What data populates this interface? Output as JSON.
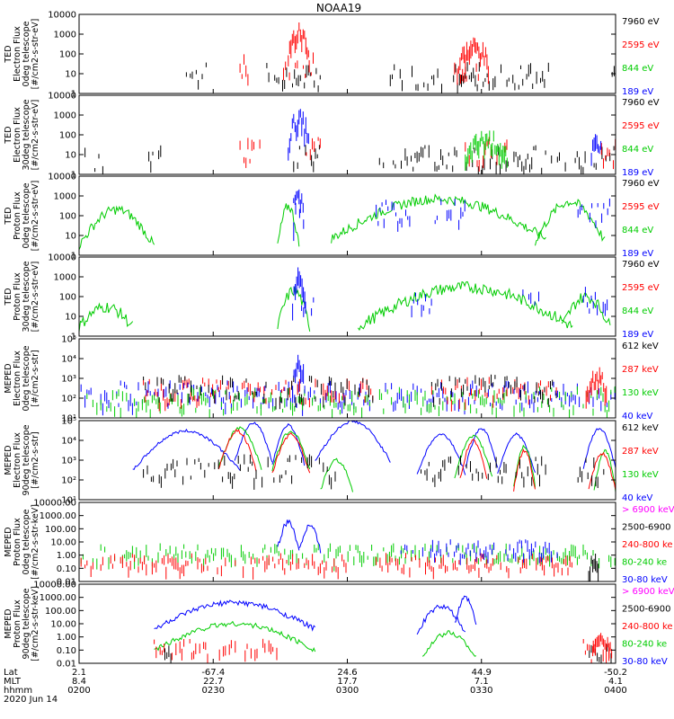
{
  "chart_data": {
    "type": "line",
    "title": "NOAA19",
    "date_label": "2020 Jun 14",
    "footer": {
      "row_labels": [
        "Lat",
        "MLT",
        "hhmm"
      ],
      "columns": [
        {
          "lat": "2.1",
          "mlt": "8.4",
          "hhmm": "0200"
        },
        {
          "lat": "-67.4",
          "mlt": "22.7",
          "hhmm": "0230"
        },
        {
          "lat": "24.6",
          "mlt": "17.7",
          "hhmm": "0300"
        },
        {
          "lat": "44.9",
          "mlt": "7.1",
          "hhmm": "0330"
        },
        {
          "lat": "-50.2",
          "mlt": "4.1",
          "hhmm": "0400"
        }
      ]
    },
    "panels": [
      {
        "ylabel": [
          "TED",
          "Electron Flux",
          "0deg telescope",
          "[#/cm2-s-str-eV]"
        ],
        "y_scale": "log",
        "ylim": [
          1,
          10000
        ],
        "y_ticks": [
          "1",
          "10",
          "100",
          "1000",
          "10000"
        ],
        "legend": [
          {
            "label": "7960 eV",
            "color": "#000000"
          },
          {
            "label": "2595 eV",
            "color": "#ff0000"
          },
          {
            "label": "844 eV",
            "color": "#00cc00"
          },
          {
            "label": "189 eV",
            "color": "#0000ff"
          }
        ],
        "series": [
          {
            "color": "#000000",
            "style": "spikes",
            "level": 10,
            "ranges": [
              [
                0.2,
                0.24
              ],
              [
                0.35,
                0.45
              ],
              [
                0.58,
                0.88
              ],
              [
                0.99,
                1.0
              ]
            ]
          },
          {
            "color": "#ff0000",
            "style": "spikes",
            "level": 30,
            "ranges": [
              [
                0.3,
                0.32
              ],
              [
                0.37,
                0.44
              ],
              [
                0.7,
                0.76
              ],
              [
                0.99,
                1.0
              ]
            ]
          }
        ],
        "bursts": [
          {
            "center": 0.41,
            "width": 0.02,
            "peak": 2000,
            "color": "#ff0000"
          },
          {
            "center": 0.735,
            "width": 0.03,
            "peak": 400,
            "color": "#ff0000"
          }
        ]
      },
      {
        "ylabel": [
          "TED",
          "Electron Flux",
          "30deg telescope",
          "[#/cm2-s-str-eV]"
        ],
        "y_scale": "log",
        "ylim": [
          1,
          10000
        ],
        "y_ticks": [
          "1",
          "10",
          "100",
          "1000",
          "10000"
        ],
        "legend": [
          {
            "label": "7960 eV",
            "color": "#000000"
          },
          {
            "label": "2595 eV",
            "color": "#ff0000"
          },
          {
            "label": "844 eV",
            "color": "#00cc00"
          },
          {
            "label": "189 eV",
            "color": "#0000ff"
          }
        ],
        "series": [
          {
            "color": "#000000",
            "style": "spikes",
            "level": 8,
            "ranges": [
              [
                0.0,
                0.05
              ],
              [
                0.13,
                0.16
              ],
              [
                0.4,
                0.45
              ],
              [
                0.56,
                0.95
              ],
              [
                0.96,
                1.0
              ]
            ]
          },
          {
            "color": "#ff0000",
            "style": "spikes",
            "level": 20,
            "ranges": [
              [
                0.3,
                0.34
              ],
              [
                0.42,
                0.46
              ],
              [
                0.72,
                0.8
              ],
              [
                0.97,
                1.0
              ]
            ]
          }
        ],
        "bursts": [
          {
            "center": 0.41,
            "width": 0.02,
            "peak": 1000,
            "color": "#0000ff"
          },
          {
            "center": 0.76,
            "width": 0.04,
            "peak": 100,
            "color": "#00cc00"
          },
          {
            "center": 0.965,
            "width": 0.01,
            "peak": 100,
            "color": "#0000ff"
          }
        ]
      },
      {
        "ylabel": [
          "TED",
          "Proton Flux",
          "0deg telescope",
          "[#/cm2-s-str-eV]"
        ],
        "y_scale": "log",
        "ylim": [
          1,
          10000
        ],
        "y_ticks": [
          "1",
          "10",
          "100",
          "1000",
          "10000"
        ],
        "legend": [
          {
            "label": "7960 eV",
            "color": "#000000"
          },
          {
            "label": "2595 eV",
            "color": "#ff0000"
          },
          {
            "label": "844 eV",
            "color": "#00cc00"
          },
          {
            "label": "189 eV",
            "color": "#0000ff"
          }
        ],
        "series": [
          {
            "color": "#00cc00",
            "style": "arc",
            "arcs": [
              [
                0.0,
                0.14,
                200
              ],
              [
                0.37,
                0.41,
                300
              ],
              [
                0.47,
                0.87,
                700
              ],
              [
                0.85,
                0.98,
                500
              ]
            ],
            "noise": 0.5
          },
          {
            "color": "#0000ff",
            "style": "spikes",
            "level": 200,
            "ranges": [
              [
                0.4,
                0.44
              ],
              [
                0.55,
                0.62
              ],
              [
                0.66,
                0.72
              ],
              [
                0.93,
                0.99
              ]
            ]
          }
        ],
        "bursts": [
          {
            "center": 0.41,
            "width": 0.01,
            "peak": 2000,
            "color": "#0000ff"
          }
        ]
      },
      {
        "ylabel": [
          "TED",
          "Proton Flux",
          "30deg telescope",
          "[#/cm2-s-str-eV]"
        ],
        "y_scale": "log",
        "ylim": [
          1,
          10000
        ],
        "y_ticks": [
          "1",
          "10",
          "100",
          "1000",
          "10000"
        ],
        "legend": [
          {
            "label": "7960 eV",
            "color": "#000000"
          },
          {
            "label": "2595 eV",
            "color": "#ff0000"
          },
          {
            "label": "844 eV",
            "color": "#00cc00"
          },
          {
            "label": "189 eV",
            "color": "#0000ff"
          }
        ],
        "series": [
          {
            "color": "#00cc00",
            "style": "arc",
            "arcs": [
              [
                0.0,
                0.1,
                30
              ],
              [
                0.37,
                0.43,
                200
              ],
              [
                0.52,
                0.92,
                300
              ],
              [
                0.9,
                0.99,
                100
              ]
            ],
            "noise": 0.6
          },
          {
            "color": "#0000ff",
            "style": "spikes",
            "level": 100,
            "ranges": [
              [
                0.4,
                0.44
              ],
              [
                0.62,
                0.66
              ],
              [
                0.82,
                0.86
              ],
              [
                0.94,
                0.99
              ]
            ]
          }
        ],
        "bursts": [
          {
            "center": 0.41,
            "width": 0.012,
            "peak": 1500,
            "color": "#0000ff"
          }
        ]
      },
      {
        "ylabel": [
          "MEPED",
          "Electron Flux",
          "0deg telescope",
          "[#/cm2-s-str]"
        ],
        "y_scale": "log",
        "ylim": [
          10,
          100000
        ],
        "y_ticks": [
          "10¹",
          "10²",
          "10³",
          "10⁴",
          "10⁵"
        ],
        "legend": [
          {
            "label": "612 keV",
            "color": "#000000"
          },
          {
            "label": "287 keV",
            "color": "#ff0000"
          },
          {
            "label": "130 keV",
            "color": "#00cc00"
          },
          {
            "label": "40 keV",
            "color": "#0000ff"
          }
        ],
        "series": [
          {
            "color": "#0000ff",
            "style": "spikes",
            "level": 200,
            "ranges": [
              [
                0.0,
                1.0
              ]
            ]
          },
          {
            "color": "#00cc00",
            "style": "spikes",
            "level": 100,
            "ranges": [
              [
                0.0,
                1.0
              ]
            ]
          },
          {
            "color": "#ff0000",
            "style": "spikes",
            "level": 300,
            "ranges": [
              [
                0.12,
                0.55
              ],
              [
                0.65,
                0.89
              ]
            ]
          },
          {
            "color": "#000000",
            "style": "spikes",
            "level": 400,
            "ranges": [
              [
                0.12,
                0.55
              ],
              [
                0.65,
                0.89
              ]
            ]
          }
        ],
        "bursts": [
          {
            "center": 0.41,
            "width": 0.012,
            "peak": 8000,
            "color": "#0000ff"
          },
          {
            "center": 0.965,
            "width": 0.02,
            "peak": 2000,
            "color": "#ff0000"
          }
        ]
      },
      {
        "ylabel": [
          "MEPED",
          "Electron Flux",
          "90deg telescope",
          "[#/cm2-s-str]"
        ],
        "y_scale": "log",
        "ylim": [
          10,
          100000
        ],
        "y_ticks": [
          "10¹",
          "10²",
          "10³",
          "10⁴",
          "10⁵"
        ],
        "legend": [
          {
            "label": "612 keV",
            "color": "#000000"
          },
          {
            "label": "287 keV",
            "color": "#ff0000"
          },
          {
            "label": "130 keV",
            "color": "#00cc00"
          },
          {
            "label": "40 keV",
            "color": "#0000ff"
          }
        ],
        "series": [
          {
            "color": "#0000ff",
            "style": "arc",
            "arcs": [
              [
                0.1,
                0.3,
                30000
              ],
              [
                0.29,
                0.36,
                80000
              ],
              [
                0.36,
                0.42,
                60000
              ],
              [
                0.44,
                0.58,
                90000
              ],
              [
                0.63,
                0.72,
                20000
              ],
              [
                0.72,
                0.78,
                40000
              ],
              [
                0.78,
                0.85,
                20000
              ],
              [
                0.94,
                1.0,
                40000
              ]
            ],
            "noise": 0.15
          },
          {
            "color": "#00cc00",
            "style": "arc",
            "arcs": [
              [
                0.26,
                0.34,
                40000
              ],
              [
                0.36,
                0.43,
                30000
              ],
              [
                0.45,
                0.51,
                1000
              ],
              [
                0.7,
                0.77,
                15000
              ],
              [
                0.81,
                0.85,
                5000
              ],
              [
                0.96,
                1.0,
                3000
              ]
            ],
            "noise": 0.2
          },
          {
            "color": "#ff0000",
            "style": "arc",
            "arcs": [
              [
                0.26,
                0.33,
                30000
              ],
              [
                0.36,
                0.43,
                20000
              ],
              [
                0.71,
                0.76,
                10000
              ],
              [
                0.81,
                0.85,
                3000
              ],
              [
                0.95,
                1.0,
                2000
              ]
            ],
            "noise": 0.2
          },
          {
            "color": "#000000",
            "style": "spikes",
            "level": 500,
            "ranges": [
              [
                0.12,
                0.48
              ],
              [
                0.63,
                0.87
              ],
              [
                0.93,
                0.98
              ]
            ]
          }
        ],
        "bursts": []
      },
      {
        "ylabel": [
          "MEPED",
          "Proton Flux",
          "0deg telescope",
          "[#/cm2-s-str-keV]"
        ],
        "y_scale": "log",
        "ylim": [
          0.01,
          10000
        ],
        "y_ticks": [
          "0.01",
          "0.10",
          "1.00",
          "10.00",
          "100.00",
          "1000.00",
          "10000.00"
        ],
        "legend": [
          {
            "label": "> 6900 keV",
            "color": "#ff00ff"
          },
          {
            "label": "2500-6900",
            "color": "#000000"
          },
          {
            "label": "240-800 ke",
            "color": "#ff0000"
          },
          {
            "label": "80-240 ke",
            "color": "#00cc00"
          },
          {
            "label": "30-80 keV",
            "color": "#0000ff"
          }
        ],
        "series": [
          {
            "color": "#0000ff",
            "style": "arc",
            "arcs": [
              [
                0.37,
                0.41,
                300
              ],
              [
                0.41,
                0.45,
                200
              ]
            ],
            "noise": 0.5
          },
          {
            "color": "#00cc00",
            "style": "spikes",
            "level": 2,
            "ranges": [
              [
                0.0,
                1.0
              ]
            ]
          },
          {
            "color": "#ff0000",
            "style": "spikes",
            "level": 0.4,
            "ranges": [
              [
                0.0,
                0.5
              ],
              [
                0.55,
                0.92
              ]
            ]
          },
          {
            "color": "#0000ff",
            "style": "spikes",
            "level": 4,
            "ranges": [
              [
                0.6,
                0.9
              ]
            ]
          }
        ],
        "bursts": [
          {
            "center": 0.96,
            "width": 0.01,
            "peak": 1,
            "color": "#000000"
          }
        ]
      },
      {
        "ylabel": [
          "MEPED",
          "Proton Flux",
          "90deg telescope",
          "[#/cm2-s-str-keV]"
        ],
        "y_scale": "log",
        "ylim": [
          0.01,
          10000
        ],
        "y_ticks": [
          "0.01",
          "0.10",
          "1.00",
          "10.00",
          "100.00",
          "1000.00",
          "10000.00"
        ],
        "legend": [
          {
            "label": "> 6900 keV",
            "color": "#ff00ff"
          },
          {
            "label": "2500-6900",
            "color": "#000000"
          },
          {
            "label": "240-800 ke",
            "color": "#ff0000"
          },
          {
            "label": "80-240 ke",
            "color": "#00cc00"
          },
          {
            "label": "30-80 keV",
            "color": "#0000ff"
          }
        ],
        "series": [
          {
            "color": "#0000ff",
            "style": "arc",
            "arcs": [
              [
                0.14,
                0.44,
                400
              ],
              [
                0.63,
                0.72,
                200
              ],
              [
                0.7,
                0.74,
                900
              ]
            ],
            "noise": 0.4
          },
          {
            "color": "#00cc00",
            "style": "arc",
            "arcs": [
              [
                0.14,
                0.44,
                10
              ],
              [
                0.64,
                0.74,
                2
              ]
            ],
            "noise": 0.4
          },
          {
            "color": "#ff0000",
            "style": "spikes",
            "level": 0.2,
            "ranges": [
              [
                0.14,
                0.37
              ],
              [
                0.94,
                1.0
              ]
            ]
          },
          {
            "color": "#000000",
            "style": "spikes",
            "level": 0.1,
            "ranges": [
              [
                0.16,
                0.18
              ],
              [
                0.94,
                1.0
              ]
            ]
          }
        ],
        "bursts": [
          {
            "center": 0.975,
            "width": 0.02,
            "peak": 1,
            "color": "#ff0000"
          }
        ]
      }
    ]
  }
}
